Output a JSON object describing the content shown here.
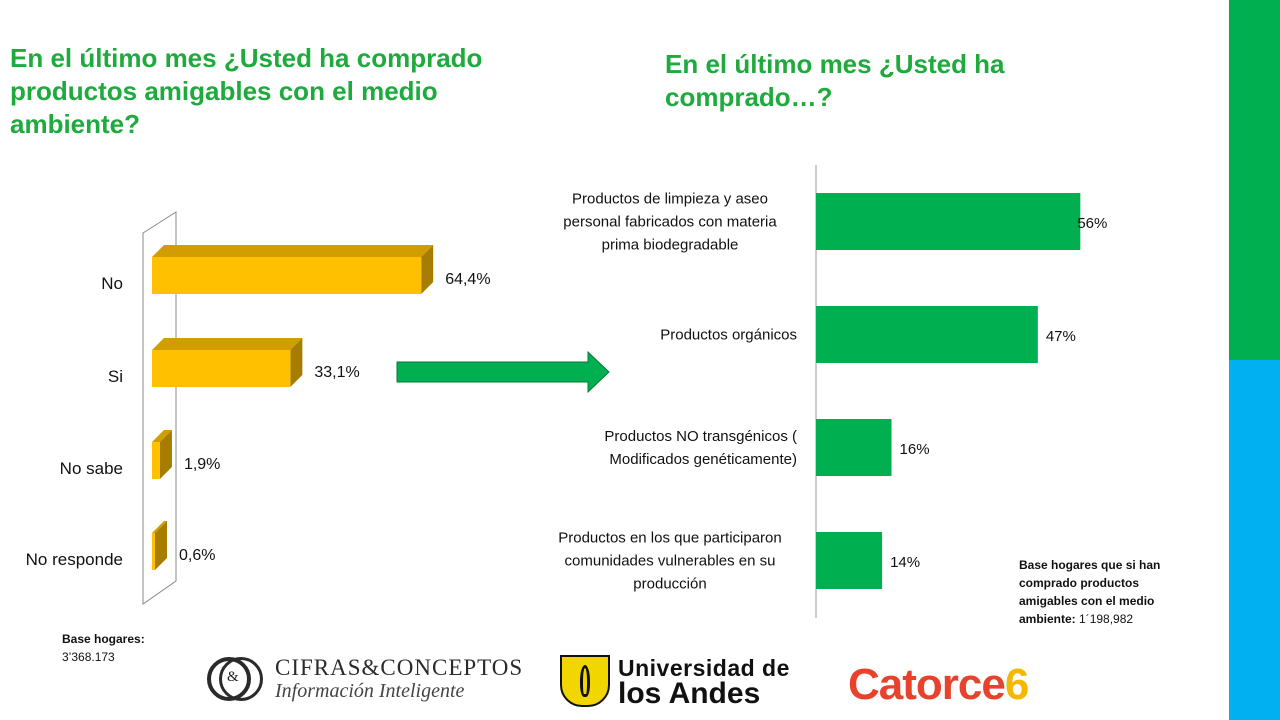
{
  "titles": {
    "left": "En el último mes ¿Usted ha comprado productos amigables con el medio ambiente?",
    "right": "En el último mes ¿Usted ha comprado…?"
  },
  "colors": {
    "accent_green": "#1faa3e",
    "bar_gold": "#ffc000",
    "bar_green": "#00b050",
    "side_green": "#00b050",
    "side_blue": "#00b0f0",
    "arrow_green": "#00b050"
  },
  "chart_data": [
    {
      "type": "bar",
      "orientation": "horizontal",
      "style": "3d",
      "categories": [
        "No",
        "Si",
        "No sabe",
        "No responde"
      ],
      "values": [
        64.4,
        33.1,
        1.9,
        0.6
      ],
      "labels": [
        "64,4%",
        "33,1%",
        "1,9%",
        "0,6%"
      ],
      "title": "En el último mes ¿Usted ha comprado productos amigables con el medio ambiente?",
      "xlim": [
        0,
        100
      ],
      "grid": false,
      "legend": "none"
    },
    {
      "type": "bar",
      "orientation": "horizontal",
      "categories": [
        "Productos de limpieza y aseo personal fabricados con materia prima biodegradable",
        "Productos orgánicos",
        "Productos NO transgénicos ( Modificados genéticamente)",
        "Productos en los que participaron comunidades vulnerables en su producción"
      ],
      "category_lines": [
        [
          "Productos de limpieza y aseo",
          "personal fabricados con materia",
          "prima biodegradable"
        ],
        [
          "Productos orgánicos"
        ],
        [
          "Productos NO transgénicos (",
          "Modificados genéticamente)"
        ],
        [
          "Productos en los que participaron",
          "comunidades vulnerables en su",
          "producción"
        ]
      ],
      "values": [
        56,
        47,
        16,
        14
      ],
      "labels": [
        "56%",
        "47%",
        "16%",
        "14%"
      ],
      "title": "En el último mes ¿Usted ha comprado…?",
      "xlim": [
        0,
        100
      ],
      "grid": false,
      "legend": "none"
    }
  ],
  "notes": {
    "left_label": "Base hogares:",
    "left_value": "3’368.173",
    "right_label": "Base hogares que si han comprado productos amigables con el medio ambiente:",
    "right_value": " 1´198,982"
  },
  "logos": {
    "cifras_amp": "&",
    "cifras_name": "CIFRAS&CONCEPTOS",
    "cifras_tagline": "Información Inteligente",
    "uniandes_line1": "Universidad de",
    "uniandes_line2": "los Andes",
    "catorce_text": "Catorce",
    "catorce_num": "6"
  }
}
